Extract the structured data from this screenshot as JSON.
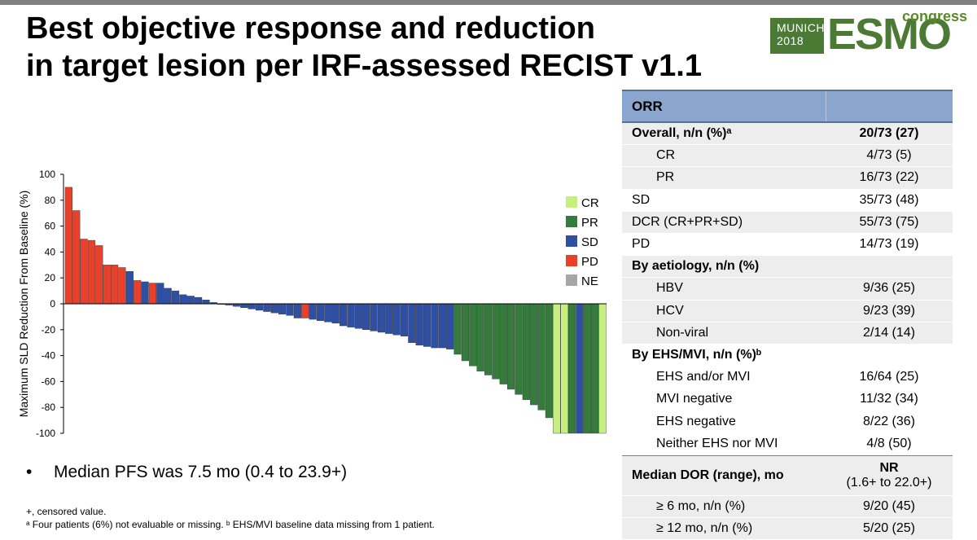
{
  "title_lines": [
    "Best objective response and reduction",
    "in target lesion per IRF-assessed RECIST v1.1"
  ],
  "logo": {
    "line1": "MUNICH",
    "line2": "2018",
    "esmo": "ESMO",
    "congress": "congress",
    "brand_color": "#4a7a34"
  },
  "colors": {
    "CR": "#c6ef7f",
    "PR": "#357c3c",
    "SD": "#2f4fa2",
    "PD": "#e8402b",
    "NE": "#a6a6a6"
  },
  "chart_data": {
    "type": "bar",
    "subtype": "waterfall",
    "ylabel": "Maximum SLD Reduction From Baseline (%)",
    "ylim": [
      -100,
      100
    ],
    "yticks": [
      "100",
      "80",
      "60",
      "40",
      "20",
      "0",
      "-20",
      "-40",
      "-60",
      "-80",
      "-100"
    ],
    "legend": [
      "CR",
      "PR",
      "SD",
      "PD",
      "NE"
    ],
    "legend_position": "right",
    "values": [
      90,
      72,
      50,
      49,
      45,
      30,
      30,
      28,
      25,
      18,
      17,
      16,
      16,
      12,
      10,
      7,
      6,
      5,
      3,
      1,
      0,
      -1,
      -2,
      -3,
      -4,
      -5,
      -6,
      -7,
      -8,
      -9,
      -11,
      -11,
      -12,
      -13,
      -14,
      -15,
      -17,
      -18,
      -19,
      -20,
      -21,
      -22,
      -23,
      -24,
      -25,
      -30,
      -32,
      -33,
      -34,
      -34,
      -35,
      -39,
      -44,
      -48,
      -52,
      -55,
      -58,
      -62,
      -66,
      -70,
      -74,
      -78,
      -82,
      -88,
      -100,
      -100,
      -100,
      -100,
      -100,
      -100,
      -100
    ],
    "categories": [
      "PD",
      "PD",
      "PD",
      "PD",
      "PD",
      "PD",
      "PD",
      "PD",
      "SD",
      "PD",
      "SD",
      "PD",
      "SD",
      "SD",
      "SD",
      "SD",
      "SD",
      "SD",
      "SD",
      "SD",
      "SD",
      "SD",
      "SD",
      "SD",
      "SD",
      "SD",
      "SD",
      "SD",
      "SD",
      "SD",
      "SD",
      "PD",
      "SD",
      "SD",
      "SD",
      "SD",
      "SD",
      "SD",
      "SD",
      "SD",
      "SD",
      "SD",
      "SD",
      "SD",
      "SD",
      "SD",
      "SD",
      "SD",
      "SD",
      "SD",
      "SD",
      "PR",
      "PR",
      "PR",
      "PR",
      "PR",
      "PR",
      "PR",
      "PR",
      "PR",
      "PR",
      "PR",
      "PR",
      "PR",
      "CR",
      "CR",
      "PR",
      "SD",
      "PR",
      "PR",
      "CR"
    ]
  },
  "bullet": "Median PFS was 7.5 mo (0.4 to 23.9+)",
  "bullet_marker": "•",
  "footnotes": [
    "+, censored value.",
    "ᵃ Four patients (6%) not evaluable or missing. ᵇ EHS/MVI baseline data missing from 1 patient."
  ],
  "table": {
    "header": "ORR",
    "overall_label": "Overall, n/n (%)ᵃ",
    "overall_value": "20/73 (27)",
    "cr_label": "CR",
    "cr_value": "4/73 (5)",
    "pr_label": "PR",
    "pr_value": "16/73 (22)",
    "sd_label": "SD",
    "sd_value": "35/73 (48)",
    "dcr_label": "DCR (CR+PR+SD)",
    "dcr_value": "55/73 (75)",
    "pd_label": "PD",
    "pd_value": "14/73 (19)",
    "aet_label": "By aetiology, n/n (%)",
    "hbv_label": "HBV",
    "hbv_value": "9/36 (25)",
    "hcv_label": "HCV",
    "hcv_value": "9/23 (39)",
    "nonviral_label": "Non-viral",
    "nonviral_value": "2/14 (14)",
    "ehs_label": "By EHS/MVI, n/n (%)ᵇ",
    "ehsmvi_label": "EHS and/or MVI",
    "ehsmvi_value": "16/64 (25)",
    "mvineg_label": "MVI negative",
    "mvineg_value": "11/32 (34)",
    "ehsneg_label": "EHS negative",
    "ehsneg_value": "8/22 (36)",
    "neither_label": "Neither EHS nor MVI",
    "neither_value": "4/8 (50)",
    "dor_label": "Median DOR (range), mo",
    "dor_value": "NR",
    "dor_range": "(1.6+ to 22.0+)",
    "dor6_label": "≥ 6 mo, n/n (%)",
    "dor6_value": "9/20 (45)",
    "dor12_label": "≥ 12 mo, n/n (%)",
    "dor12_value": "5/20 (25)"
  }
}
